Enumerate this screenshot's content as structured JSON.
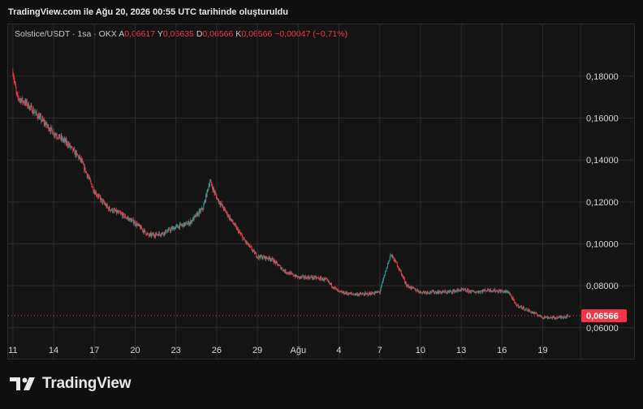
{
  "header": {
    "caption": "TradingView.com ile Ağu 20, 2026 00:55 UTC tarihinde oluşturuldu"
  },
  "legend": {
    "symbol": "Solstice/USDT · 1sa · OKX",
    "o_label": "A",
    "o_value": "0,06617",
    "h_label": "Y",
    "h_value": "0,06635",
    "l_label": "D",
    "l_value": "0,06566",
    "c_label": "K",
    "c_value": "0,06566",
    "change": "−0,00047 (−0,71%)"
  },
  "colors": {
    "up": "#26a69a",
    "down": "#f23645",
    "grid": "#2b2b2b",
    "text": "#d1d4dc",
    "background": "#141414"
  },
  "footer": {
    "brand": "TradingView"
  },
  "chart_data": {
    "type": "candlestick",
    "grid": true,
    "price_label": "0,06566",
    "y_ticks": [
      "0,18000",
      "0,16000",
      "0,14000",
      "0,12000",
      "0,10000",
      "0,08000",
      "0,06000"
    ],
    "y_tick_values": [
      0.18,
      0.16,
      0.14,
      0.12,
      0.1,
      0.08,
      0.06
    ],
    "ylim": [
      0.0545,
      0.197
    ],
    "x_ticks": [
      "11",
      "14",
      "17",
      "20",
      "23",
      "26",
      "29",
      "Ağu",
      "4",
      "7",
      "10",
      "13",
      "16",
      "19"
    ],
    "x_tick_days": [
      0,
      3,
      6,
      9,
      12,
      15,
      18,
      21,
      24,
      27,
      30,
      33,
      36,
      39
    ],
    "xlim_days": [
      -0.35,
      41.6
    ],
    "last_close": 0.06566,
    "close_path": [
      [
        0,
        0.182
      ],
      [
        0.3,
        0.17
      ],
      [
        1,
        0.167
      ],
      [
        2,
        0.16
      ],
      [
        3,
        0.153
      ],
      [
        4,
        0.148
      ],
      [
        5,
        0.14
      ],
      [
        6,
        0.125
      ],
      [
        7,
        0.117
      ],
      [
        8,
        0.114
      ],
      [
        9,
        0.11
      ],
      [
        10,
        0.104
      ],
      [
        11,
        0.105
      ],
      [
        12,
        0.108
      ],
      [
        13,
        0.11
      ],
      [
        14,
        0.117
      ],
      [
        14.5,
        0.13
      ],
      [
        15,
        0.122
      ],
      [
        16,
        0.112
      ],
      [
        17,
        0.102
      ],
      [
        18,
        0.094
      ],
      [
        19,
        0.093
      ],
      [
        20,
        0.087
      ],
      [
        21,
        0.084
      ],
      [
        22,
        0.084
      ],
      [
        23,
        0.083
      ],
      [
        24,
        0.077
      ],
      [
        25,
        0.076
      ],
      [
        26,
        0.076
      ],
      [
        27,
        0.077
      ],
      [
        27.8,
        0.095
      ],
      [
        28.3,
        0.09
      ],
      [
        29,
        0.08
      ],
      [
        30,
        0.077
      ],
      [
        31,
        0.077
      ],
      [
        32,
        0.077
      ],
      [
        33,
        0.078
      ],
      [
        34,
        0.077
      ],
      [
        35,
        0.078
      ],
      [
        36.5,
        0.077
      ],
      [
        37,
        0.071
      ],
      [
        38,
        0.068
      ],
      [
        39,
        0.065
      ],
      [
        40,
        0.0647
      ],
      [
        41,
        0.0657
      ]
    ]
  }
}
